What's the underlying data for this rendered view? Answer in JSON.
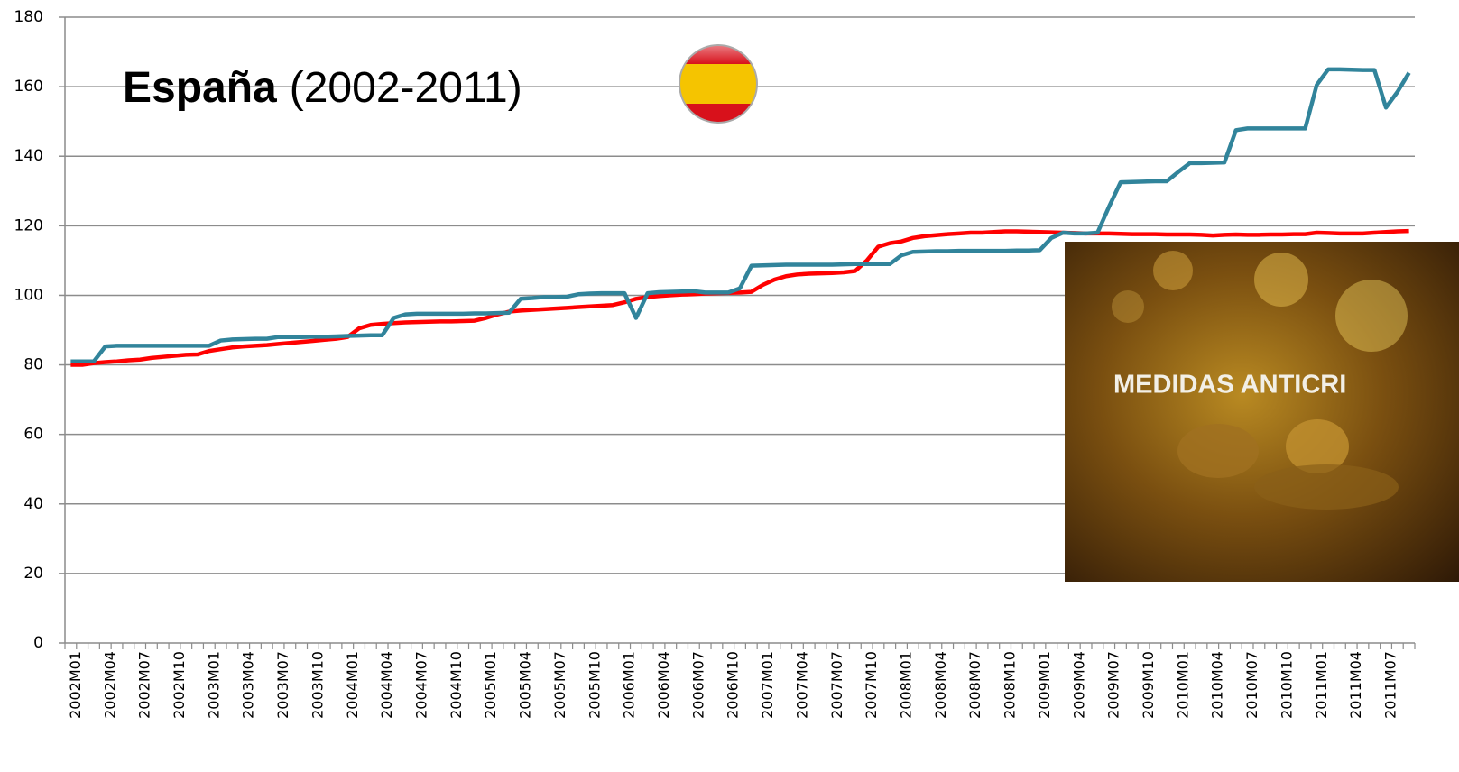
{
  "chart_data": {
    "type": "line",
    "title": "España",
    "subtitle": "(2002-2011)",
    "image_caption": "MEDIDAS ANTICRI",
    "categories": [
      "2002M01",
      null,
      null,
      "2002M04",
      null,
      null,
      "2002M07",
      null,
      null,
      "2002M10",
      null,
      null,
      "2003M01",
      null,
      null,
      "2003M04",
      null,
      null,
      "2003M07",
      null,
      null,
      "2003M10",
      null,
      null,
      "2004M01",
      null,
      null,
      "2004M04",
      null,
      null,
      "2004M07",
      null,
      null,
      "2004M10",
      null,
      null,
      "2005M01",
      null,
      null,
      "2005M04",
      null,
      null,
      "2005M07",
      null,
      null,
      "2005M10",
      null,
      null,
      "2006M01",
      null,
      null,
      "2006M04",
      null,
      null,
      "2006M07",
      null,
      null,
      "2006M10",
      null,
      null,
      "2007M01",
      null,
      null,
      "2007M04",
      null,
      null,
      "2007M07",
      null,
      null,
      "2007M10",
      null,
      null,
      "2008M01",
      null,
      null,
      "2008M04",
      null,
      null,
      "2008M07",
      null,
      null,
      "2008M10",
      null,
      null,
      "2009M01",
      null,
      null,
      "2009M04",
      null,
      null,
      "2009M07",
      null,
      null,
      "2009M10",
      null,
      null,
      "2010M01",
      null,
      null,
      "2010M04",
      null,
      null,
      "2010M07",
      null,
      null,
      "2010M10",
      null,
      null,
      "2011M01",
      null,
      null,
      "2011M04",
      null,
      null,
      "2011M07",
      null,
      null
    ],
    "series": [
      {
        "color": "#ff0000",
        "values": [
          80,
          80,
          80.5,
          80.8,
          81,
          81.3,
          81.5,
          82,
          82.3,
          82.6,
          82.9,
          83,
          84,
          84.5,
          85,
          85.3,
          85.5,
          85.7,
          86,
          86.3,
          86.6,
          86.9,
          87.2,
          87.5,
          88,
          90.5,
          91.5,
          91.8,
          92,
          92.2,
          92.3,
          92.4,
          92.5,
          92.5,
          92.6,
          92.7,
          93.5,
          94.5,
          95.3,
          95.6,
          95.8,
          96,
          96.2,
          96.4,
          96.6,
          96.8,
          97,
          97.2,
          98,
          99,
          99.5,
          99.8,
          100,
          100.2,
          100.3,
          100.5,
          100.6,
          100.7,
          100.8,
          101,
          103,
          104.5,
          105.5,
          106,
          106.2,
          106.3,
          106.4,
          106.6,
          107,
          110,
          114,
          115,
          115.5,
          116.5,
          117,
          117.3,
          117.6,
          117.8,
          118,
          118,
          118.2,
          118.4,
          118.4,
          118.3,
          118.2,
          118.1,
          118,
          117.9,
          117.8,
          117.8,
          117.8,
          117.7,
          117.6,
          117.6,
          117.6,
          117.5,
          117.5,
          117.5,
          117.4,
          117.2,
          117.4,
          117.5,
          117.4,
          117.4,
          117.5,
          117.5,
          117.6,
          117.6,
          118,
          117.9,
          117.8,
          117.8,
          117.8,
          118,
          118.2,
          118.4,
          118.5
        ]
      },
      {
        "color": "#31849b",
        "values": [
          81,
          81,
          81,
          85.3,
          85.5,
          85.5,
          85.5,
          85.5,
          85.5,
          85.5,
          85.5,
          85.5,
          85.5,
          87,
          87.3,
          87.4,
          87.5,
          87.5,
          88,
          88,
          88,
          88.1,
          88.1,
          88.2,
          88.3,
          88.4,
          88.5,
          88.5,
          93.5,
          94.5,
          94.7,
          94.7,
          94.7,
          94.7,
          94.7,
          94.8,
          94.8,
          94.9,
          95,
          99,
          99.2,
          99.5,
          99.5,
          99.6,
          100.3,
          100.5,
          100.6,
          100.6,
          100.6,
          93.5,
          100.6,
          100.9,
          101,
          101.1,
          101.2,
          100.8,
          100.8,
          100.8,
          102,
          108.5,
          108.6,
          108.7,
          108.8,
          108.8,
          108.8,
          108.8,
          108.8,
          108.9,
          109,
          109,
          109,
          109,
          111.5,
          112.5,
          112.6,
          112.7,
          112.7,
          112.8,
          112.8,
          112.8,
          112.8,
          112.8,
          112.9,
          112.9,
          113,
          116.5,
          118,
          117.8,
          117.8,
          118,
          125.5,
          132.5,
          132.6,
          132.7,
          132.8,
          132.8,
          135.5,
          138,
          138,
          138.1,
          138.2,
          147.5,
          148,
          148,
          148,
          148,
          148,
          148,
          160.5,
          165,
          165,
          164.9,
          164.8,
          164.8,
          154,
          158.5,
          164
        ]
      }
    ],
    "ylim": [
      0,
      180
    ],
    "yticks": [
      0,
      20,
      40,
      60,
      80,
      100,
      120,
      140,
      160,
      180
    ],
    "grid": true
  }
}
